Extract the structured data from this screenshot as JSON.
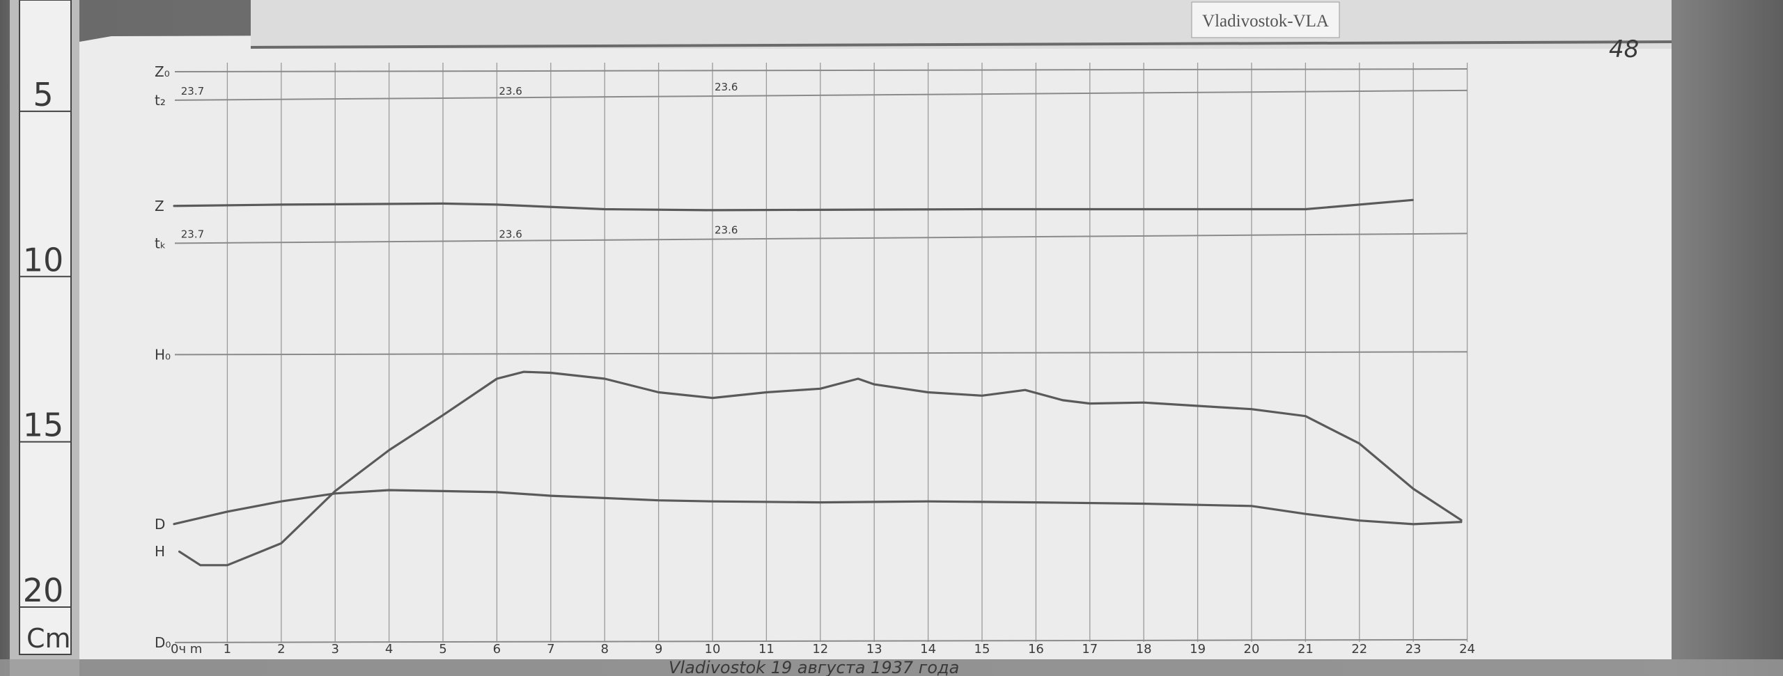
{
  "label_card": "Vladivostok-VLA",
  "corner_mark": "48",
  "ruler": {
    "ticks": [
      "5",
      "10",
      "15",
      "20"
    ],
    "unit": "Cm"
  },
  "colors": {
    "paper": "#ececec",
    "trace": "#5a5a5a",
    "grid": "#9a9a9a",
    "ruler": "#f0f0f0"
  },
  "chart_data": {
    "type": "line",
    "title": "",
    "xlabel": "",
    "ylabel": "",
    "x_unit_label": "0ч m",
    "x_ticks": [
      "1",
      "2",
      "3",
      "4",
      "5",
      "6",
      "7",
      "8",
      "9",
      "10",
      "11",
      "12",
      "13",
      "14",
      "15",
      "16",
      "17",
      "18",
      "19",
      "20",
      "21",
      "22",
      "23",
      "24"
    ],
    "xlim": [
      0,
      24
    ],
    "ylim_cm": [
      4,
      22
    ],
    "grid": true,
    "footer_text": "Vladivostok 19 августа 1937 года",
    "baselines": [
      {
        "name": "Z₀",
        "y_cm": 4.35
      },
      {
        "name": "t₂",
        "y_cm": 5.21,
        "labels": [
          "23.7",
          "23.6",
          "23.6"
        ]
      },
      {
        "name": "tₖ",
        "y_cm": 9.54,
        "labels": [
          "23.7",
          "23.6",
          "23.6"
        ]
      },
      {
        "name": "H₀",
        "y_cm": 12.91
      },
      {
        "name": "D₀",
        "y_cm": 21.62
      }
    ],
    "series": [
      {
        "name": "Z",
        "x": [
          0,
          2,
          5,
          6,
          8,
          10,
          15,
          21,
          22,
          23
        ],
        "y": [
          8.41,
          8.37,
          8.34,
          8.37,
          8.51,
          8.54,
          8.51,
          8.51,
          8.37,
          8.23
        ]
      },
      {
        "name": "D",
        "x": [
          0,
          1,
          2,
          3,
          4,
          5,
          6,
          7,
          8,
          9,
          10,
          12,
          14,
          16,
          18,
          20,
          21,
          22,
          23,
          23.9
        ],
        "y": [
          18.04,
          17.66,
          17.35,
          17.11,
          17.01,
          17.04,
          17.07,
          17.18,
          17.25,
          17.32,
          17.35,
          17.38,
          17.35,
          17.38,
          17.42,
          17.49,
          17.73,
          17.93,
          18.04,
          17.97
        ]
      },
      {
        "name": "H",
        "x": [
          0.1,
          0.5,
          1,
          2,
          3,
          4,
          5,
          6,
          6.5,
          7,
          8,
          9,
          10,
          11,
          12,
          12.7,
          13,
          14,
          15,
          15.8,
          16.5,
          17,
          18,
          19,
          20,
          21,
          22,
          23,
          23.9
        ],
        "y": [
          18.86,
          19.28,
          19.28,
          18.62,
          17.04,
          15.8,
          14.74,
          13.64,
          13.43,
          13.46,
          13.64,
          14.05,
          14.22,
          14.05,
          13.94,
          13.64,
          13.81,
          14.05,
          14.15,
          13.98,
          14.29,
          14.39,
          14.36,
          14.46,
          14.56,
          14.77,
          15.6,
          16.97,
          17.93
        ]
      }
    ]
  }
}
